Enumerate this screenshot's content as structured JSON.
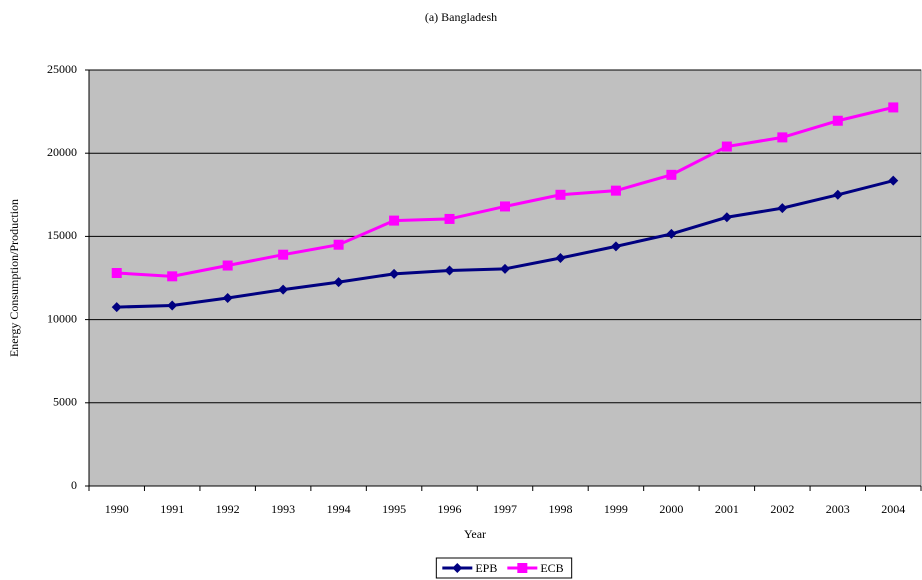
{
  "chart_data": {
    "type": "line",
    "title": "(a) Bangladesh",
    "x_label": "Year",
    "y_label": "Energy Consumption/Production",
    "categories": [
      "1990",
      "1991",
      "1992",
      "1993",
      "1994",
      "1995",
      "1996",
      "1997",
      "1998",
      "1999",
      "2000",
      "2001",
      "2002",
      "2003",
      "2004"
    ],
    "series": [
      {
        "name": "EPB",
        "color": "#000080",
        "marker": "diamond",
        "values": [
          10750,
          10850,
          11300,
          11800,
          12250,
          12750,
          12950,
          13050,
          13700,
          14400,
          15150,
          16150,
          16700,
          17500,
          18350
        ]
      },
      {
        "name": "ECB",
        "color": "#ff00ff",
        "marker": "square",
        "values": [
          12800,
          12600,
          13250,
          13900,
          14500,
          15950,
          16050,
          16800,
          17500,
          17750,
          18700,
          20400,
          20950,
          21950,
          22750
        ]
      }
    ],
    "ylim": [
      0,
      25000
    ],
    "yticks": [
      0,
      5000,
      10000,
      15000,
      20000,
      25000
    ],
    "grid": true,
    "plot_background": "#c0c0c0",
    "legend": "bottom"
  }
}
